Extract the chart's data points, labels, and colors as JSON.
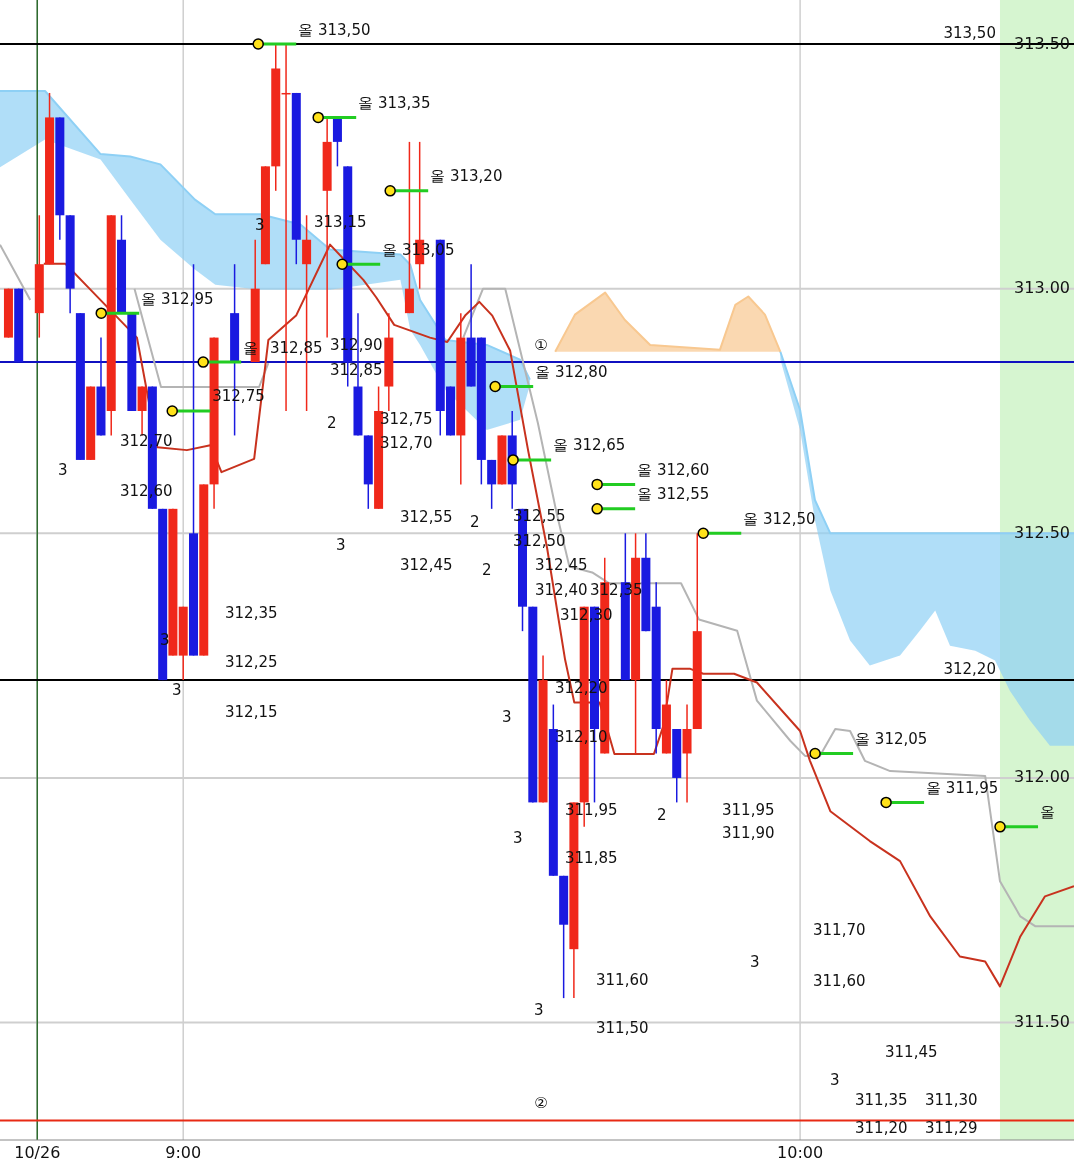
{
  "chart_data": {
    "type": "candlestick",
    "xlim": [
      8.703,
      10.444
    ],
    "ylim": [
      311.26,
      313.59
    ],
    "xticks": [
      {
        "value": 8.7634,
        "label": "10/26"
      },
      {
        "value": 9,
        "label": "9:00"
      },
      {
        "value": 10,
        "label": "10:00"
      }
    ],
    "yticks": [
      {
        "value": 311.5,
        "label": "311.50"
      },
      {
        "value": 312,
        "label": "312.00"
      },
      {
        "value": 312.5,
        "label": "312.50"
      },
      {
        "value": 313,
        "label": "313.00"
      },
      {
        "value": 313.5,
        "label": "313.50"
      }
    ],
    "grid": true,
    "bands": [
      {
        "axis": "x",
        "from": 10.324,
        "to": 10.444,
        "color": "#d6f5d0"
      }
    ],
    "ref_lines": [
      {
        "axis": "x",
        "value": 8.7634,
        "color": "#2e6b2e"
      },
      {
        "axis": "y",
        "value": 313.5,
        "label": "313,50",
        "color": "#000000"
      },
      {
        "axis": "y",
        "value": 312.85,
        "label": "①",
        "color": "#1010c0"
      },
      {
        "axis": "y",
        "value": 312.2,
        "label": "312,20",
        "color": "#000000"
      },
      {
        "axis": "y",
        "value": 311.3,
        "label": "②",
        "color": "#e82a14"
      }
    ],
    "series": [
      {
        "type": "line",
        "color": "#8ed0f5",
        "x": [
          8.703,
          8.776,
          8.866,
          8.914,
          8.963,
          9.019,
          9.052,
          9.125,
          9.19,
          9.238,
          9.352,
          9.368,
          9.384,
          9.425,
          9.492,
          9.546,
          9.562
        ],
        "values": [
          313.404,
          313.404,
          313.275,
          313.27,
          313.254,
          313.182,
          313.152,
          313.152,
          313.131,
          313.08,
          313.07,
          313.049,
          312.977,
          312.895,
          312.885,
          312.855,
          312.814
        ],
        "upper": [
          313.404,
          313.404,
          313.275,
          313.27,
          313.254,
          313.182,
          313.152,
          313.152,
          313.131,
          313.08,
          313.07,
          313.049,
          312.977,
          312.895,
          312.885,
          312.855,
          312.814
        ],
        "lower": [
          313.248,
          313.305,
          313.264,
          313.182,
          313.1,
          313.039,
          313.008,
          312.998,
          312.998,
          312.998,
          313.018,
          312.916,
          312.885,
          312.793,
          312.711,
          312.732,
          312.803
        ]
      },
      {
        "type": "line",
        "color": "#f8c890",
        "x": [
          9.603,
          9.635,
          9.684,
          9.716,
          9.757,
          9.87,
          9.895,
          9.916,
          9.943,
          9.968
        ],
        "values": [
          312.871,
          312.947,
          312.992,
          312.936,
          312.885,
          312.875,
          312.967,
          312.984,
          312.947,
          312.871
        ],
        "upper": [
          312.871,
          312.947,
          312.992,
          312.936,
          312.885,
          312.875,
          312.967,
          312.984,
          312.947,
          312.871
        ],
        "lower": [
          312.871,
          312.871,
          312.871,
          312.871,
          312.871,
          312.871,
          312.871,
          312.871,
          312.871,
          312.871
        ]
      },
      {
        "type": "line",
        "color": "#8ed0f5",
        "x": [
          9.968,
          10.0,
          10.024,
          10.049,
          10.081,
          10.113,
          10.162,
          10.194,
          10.219,
          10.243,
          10.284,
          10.316,
          10.34,
          10.373,
          10.405,
          10.444
        ],
        "values": [
          312.871,
          312.752,
          312.568,
          312.5,
          312.5,
          312.5,
          312.5,
          312.5,
          312.5,
          312.5,
          312.5,
          312.5,
          312.5,
          312.5,
          312.5,
          312.5
        ],
        "upper": [
          312.871,
          312.752,
          312.568,
          312.5,
          312.5,
          312.5,
          312.5,
          312.5,
          312.5,
          312.5,
          312.5,
          312.5,
          312.5,
          312.5,
          312.5,
          312.5
        ],
        "lower": [
          312.855,
          312.711,
          312.527,
          312.383,
          312.281,
          312.23,
          312.25,
          312.301,
          312.342,
          312.27,
          312.26,
          312.24,
          312.178,
          312.117,
          312.066,
          312.066
        ]
      },
      {
        "type": "line",
        "color": "#b4b4b4",
        "x": [
          8.703,
          8.752,
          8.84,
          8.921,
          8.964,
          9.123,
          9.138,
          9.3,
          9.454,
          9.486,
          9.522,
          9.575,
          9.605,
          9.626,
          9.663,
          9.69,
          9.807,
          9.836,
          9.898,
          9.93,
          9.984,
          10.008,
          10.032,
          10.057,
          10.081,
          10.105,
          10.146,
          10.3,
          10.324,
          10.357,
          10.381,
          10.444
        ],
        "values": [
          313.09,
          312.977,
          null,
          313.0,
          312.799,
          312.799,
          312.848,
          null,
          312.9,
          313.0,
          313.0,
          312.725,
          312.543,
          312.432,
          312.42,
          312.398,
          312.398,
          312.324,
          312.301,
          312.158,
          312.076,
          312.045,
          312.045,
          312.1,
          312.096,
          312.035,
          312.014,
          312.004,
          311.789,
          311.717,
          311.697,
          311.697
        ]
      },
      {
        "type": "line",
        "color": "#c8321e",
        "x": [
          8.774,
          8.809,
          8.848,
          8.925,
          8.958,
          9.006,
          9.044,
          9.062,
          9.115,
          9.138,
          9.183,
          9.238,
          9.292,
          9.313,
          9.342,
          9.4,
          9.428,
          9.457,
          9.48,
          9.501,
          9.53,
          9.559,
          9.59,
          9.619,
          9.634,
          9.675,
          9.699,
          9.763,
          9.778,
          9.793,
          9.822,
          9.843,
          9.893,
          9.93,
          10.0,
          10.016,
          10.049,
          10.113,
          10.162,
          10.211,
          10.259,
          10.3,
          10.324,
          10.357,
          10.397,
          10.444
        ],
        "values": [
          313.051,
          313.051,
          313.0,
          312.9,
          312.676,
          312.67,
          312.68,
          312.625,
          312.652,
          312.895,
          312.945,
          313.09,
          313.018,
          312.982,
          312.926,
          312.9,
          312.891,
          312.945,
          312.973,
          312.945,
          312.873,
          312.67,
          312.469,
          312.242,
          312.154,
          312.154,
          312.049,
          312.049,
          312.105,
          312.223,
          312.223,
          312.213,
          312.213,
          312.195,
          312.096,
          312.035,
          311.932,
          311.871,
          311.83,
          311.717,
          311.635,
          311.625,
          311.574,
          311.676,
          311.758,
          311.779
        ]
      },
      {
        "type": "candlestick",
        "x": [
          8.7167,
          8.7333,
          8.7667,
          8.7833,
          8.8,
          8.8167,
          8.8333,
          8.85,
          8.8667,
          8.8833,
          8.9,
          8.9167,
          8.9333,
          8.95,
          8.9667,
          8.9833,
          9,
          9.0167,
          9.0333,
          9.05,
          9.0833,
          9.1167,
          9.1333,
          9.15,
          9.1667,
          9.1833,
          9.2,
          9.2333,
          9.25,
          9.2667,
          9.2833,
          9.3,
          9.3167,
          9.3333,
          9.3667,
          9.3833,
          9.4167,
          9.4333,
          9.45,
          9.4667,
          9.4833,
          9.5,
          9.5167,
          9.5333,
          9.55,
          9.5667,
          9.5833,
          9.6,
          9.6167,
          9.6333,
          9.65,
          9.6667,
          9.6833,
          9.7167,
          9.7333,
          9.75,
          9.7667,
          9.7833,
          9.8,
          9.8167,
          9.8333
        ],
        "ohlc": [
          [
            312.9,
            313.0,
            312.9,
            313.0
          ],
          [
            313.0,
            313.0,
            312.85,
            312.85
          ],
          [
            312.95,
            313.15,
            312.9,
            313.05
          ],
          [
            313.05,
            313.4,
            313.05,
            313.35
          ],
          [
            313.35,
            313.35,
            313.1,
            313.15
          ],
          [
            313.15,
            313.15,
            312.95,
            313.0
          ],
          [
            312.95,
            312.95,
            312.65,
            312.65
          ],
          [
            312.65,
            312.8,
            312.65,
            312.8
          ],
          [
            312.8,
            312.9,
            312.7,
            312.7
          ],
          [
            312.75,
            313.15,
            312.7,
            313.15
          ],
          [
            313.1,
            313.15,
            312.95,
            312.95
          ],
          [
            312.95,
            312.95,
            312.75,
            312.75
          ],
          [
            312.75,
            312.8,
            312.7,
            312.8
          ],
          [
            312.8,
            312.8,
            312.55,
            312.55
          ],
          [
            312.55,
            312.55,
            312.2,
            312.2
          ],
          [
            312.25,
            312.55,
            312.25,
            312.55
          ],
          [
            312.25,
            312.35,
            312.2,
            312.35
          ],
          [
            312.5,
            313.05,
            312.25,
            312.25
          ],
          [
            312.25,
            312.6,
            312.25,
            312.6
          ],
          [
            312.6,
            312.9,
            312.55,
            312.9
          ],
          [
            312.95,
            313.05,
            312.7,
            312.85
          ],
          [
            312.85,
            313.1,
            312.85,
            313.0
          ],
          [
            313.05,
            313.25,
            313.05,
            313.25
          ],
          [
            313.25,
            313.5,
            313.2,
            313.45
          ],
          [
            313.4,
            313.5,
            312.75,
            313.4
          ],
          [
            313.4,
            313.4,
            313.05,
            313.1
          ],
          [
            313.05,
            313.15,
            312.75,
            313.1
          ],
          [
            313.2,
            313.35,
            312.9,
            313.3
          ],
          [
            313.35,
            313.35,
            313.25,
            313.3
          ],
          [
            313.25,
            313.25,
            312.8,
            312.85
          ],
          [
            312.8,
            312.95,
            312.7,
            312.7
          ],
          [
            312.7,
            312.7,
            312.55,
            312.6
          ],
          [
            312.55,
            312.8,
            312.55,
            312.75
          ],
          [
            312.8,
            312.95,
            312.75,
            312.9
          ],
          [
            312.95,
            313.3,
            312.95,
            313.0
          ],
          [
            313.05,
            313.3,
            313.0,
            313.1
          ],
          [
            313.1,
            313.1,
            312.7,
            312.75
          ],
          [
            312.8,
            312.8,
            312.7,
            312.7
          ],
          [
            312.7,
            312.95,
            312.6,
            312.9
          ],
          [
            312.9,
            313.05,
            312.8,
            312.8
          ],
          [
            312.9,
            312.9,
            312.6,
            312.65
          ],
          [
            312.65,
            312.65,
            312.55,
            312.6
          ],
          [
            312.6,
            312.7,
            312.6,
            312.7
          ],
          [
            312.7,
            312.75,
            312.55,
            312.6
          ],
          [
            312.55,
            312.55,
            312.3,
            312.35
          ],
          [
            312.35,
            312.35,
            311.95,
            311.95
          ],
          [
            311.95,
            312.25,
            311.95,
            312.2
          ],
          [
            312.1,
            312.15,
            311.8,
            311.8
          ],
          [
            311.8,
            311.8,
            311.55,
            311.7
          ],
          [
            311.65,
            311.95,
            311.55,
            311.95
          ],
          [
            311.95,
            312.35,
            311.9,
            312.35
          ],
          [
            312.35,
            312.35,
            311.95,
            312.1
          ],
          [
            312.05,
            312.45,
            312.05,
            312.4
          ],
          [
            312.4,
            312.5,
            312.2,
            312.2
          ],
          [
            312.2,
            312.5,
            312.05,
            312.45
          ],
          [
            312.45,
            312.5,
            312.3,
            312.3
          ],
          [
            312.35,
            312.4,
            312.05,
            312.1
          ],
          [
            312.05,
            312.2,
            312.05,
            312.15
          ],
          [
            312.1,
            312.1,
            311.95,
            312.0
          ],
          [
            312.05,
            312.15,
            311.95,
            312.1
          ],
          [
            312.1,
            312.5,
            312.1,
            312.3
          ]
        ],
        "colors": [
          "#f0281a",
          "#1a1ae0",
          "#f0281a",
          "#f0281a",
          "#1a1ae0",
          "#1a1ae0",
          "#1a1ae0",
          "#f0281a",
          "#1a1ae0",
          "#f0281a",
          "#1a1ae0",
          "#1a1ae0",
          "#f0281a",
          "#1a1ae0",
          "#1a1ae0",
          "#f0281a",
          "#f0281a",
          "#1a1ae0",
          "#f0281a",
          "#f0281a",
          "#1a1ae0",
          "#f0281a",
          "#f0281a",
          "#f0281a",
          "#f0281a",
          "#1a1ae0",
          "#f0281a",
          "#f0281a",
          "#1a1ae0",
          "#1a1ae0",
          "#1a1ae0",
          "#1a1ae0",
          "#f0281a",
          "#f0281a",
          "#f0281a",
          "#f0281a",
          "#1a1ae0",
          "#1a1ae0",
          "#f0281a",
          "#1a1ae0",
          "#1a1ae0",
          "#1a1ae0",
          "#f0281a",
          "#1a1ae0",
          "#1a1ae0",
          "#1a1ae0",
          "#f0281a",
          "#1a1ae0",
          "#1a1ae0",
          "#f0281a",
          "#f0281a",
          "#1a1ae0",
          "#f0281a",
          "#1a1ae0",
          "#f0281a",
          "#1a1ae0",
          "#1a1ae0",
          "#f0281a",
          "#1a1ae0",
          "#f0281a",
          "#f0281a"
        ]
      },
      {
        "type": "scatter",
        "marker": "circle",
        "color": "#ffe21a",
        "x": [
          9.1216,
          9.2188,
          9.3355,
          9.2577,
          8.8671,
          9.0324,
          8.9822,
          9.5057,
          9.5348,
          9.671,
          9.671,
          9.843,
          10.0243,
          10.1394,
          10.3241
        ],
        "values": [
          313.5,
          313.35,
          313.2,
          313.05,
          312.95,
          312.85,
          312.75,
          312.8,
          312.65,
          312.6,
          312.55,
          312.5,
          312.05,
          311.95,
          311.9
        ]
      }
    ],
    "annotations": [
      {
        "text": "올 313,50",
        "x": 9.1216,
        "y": 313.5
      },
      {
        "text": "올 313,35",
        "x": 9.2188,
        "y": 313.35
      },
      {
        "text": "올 313,20",
        "x": 9.3355,
        "y": 313.2
      },
      {
        "text": "올 313,05",
        "x": 9.2577,
        "y": 313.05
      },
      {
        "text": "올 312,95",
        "x": 8.8671,
        "y": 312.95
      },
      {
        "text": "올",
        "x": 9.0324,
        "y": 312.85
      },
      {
        "text": "312,75",
        "x": 8.9822,
        "y": 312.75
      },
      {
        "text": "올 312,80",
        "x": 9.5057,
        "y": 312.8
      },
      {
        "text": "올 312,65",
        "x": 9.5348,
        "y": 312.65
      },
      {
        "text": "올 312,60",
        "x": 9.671,
        "y": 312.6
      },
      {
        "text": "올 312,55",
        "x": 9.671,
        "y": 312.55
      },
      {
        "text": "올 312,50",
        "x": 9.843,
        "y": 312.5
      },
      {
        "text": "올 312,05",
        "x": 10.0243,
        "y": 312.05
      },
      {
        "text": "올 311,95",
        "x": 10.1394,
        "y": 311.95
      },
      {
        "text": "올",
        "x": 10.3241,
        "y": 311.9
      },
      "312,70",
      "312,60",
      "312,35",
      "312,25",
      "312,15",
      "313,15",
      "312,85",
      "312,90",
      "312,85",
      "312,75",
      "312,70",
      "312,55",
      "312,45",
      "312,55",
      "312,50",
      "312,45",
      "312,40",
      "312,35",
      "312,30",
      "312,20",
      "312,10",
      "311,95",
      "311,85",
      "311,60",
      "311,50",
      "311,95",
      "311,90",
      "311,70",
      "311,60",
      "311,45",
      "311,30",
      "311,35",
      "311,29",
      "311,20",
      "3",
      "3",
      "3",
      "3",
      "2",
      "3",
      "2",
      "2",
      "3",
      "3",
      "3",
      "2",
      "3",
      "3"
    ]
  }
}
